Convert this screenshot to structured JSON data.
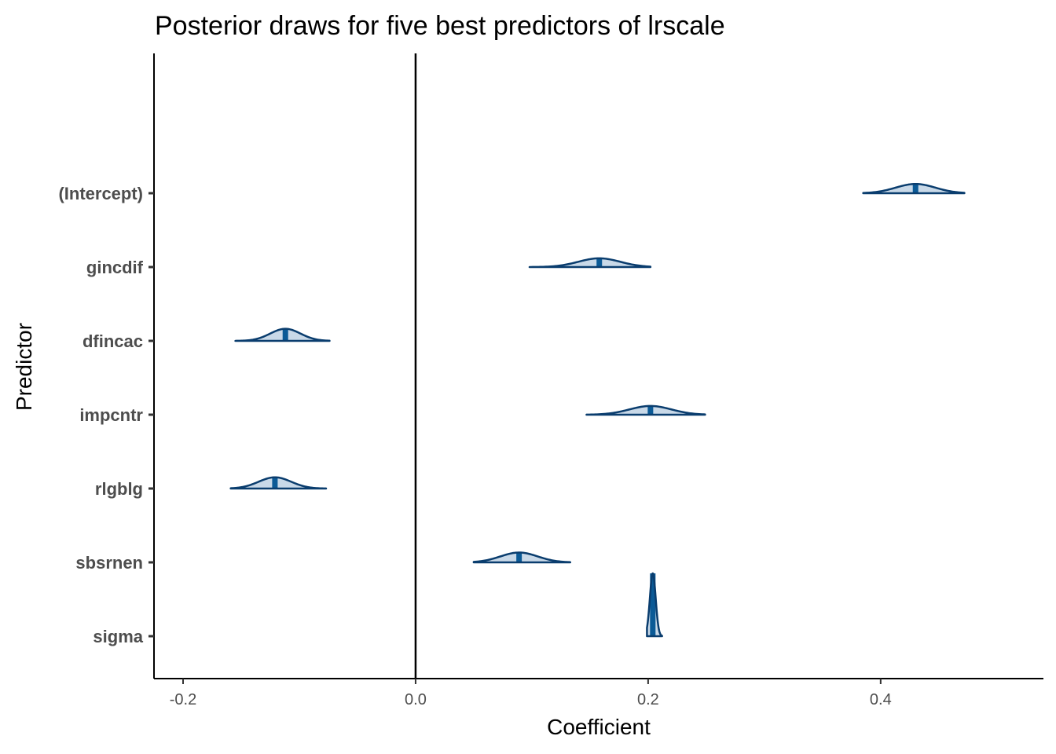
{
  "chart_data": {
    "type": "ridgeline",
    "title": "Posterior draws for five best predictors of lrscale",
    "xlabel": "Coefficient",
    "ylabel": "Predictor",
    "xlim": [
      -0.225,
      0.54
    ],
    "x_ticks": [
      -0.2,
      0.0,
      0.2,
      0.4
    ],
    "x_tick_labels": [
      "-0.2",
      "0.0",
      "0.2",
      "0.4"
    ],
    "reference_line_x": 0.0,
    "grid": false,
    "colors": {
      "outline": "#0a3d6e",
      "fill": "#c9d9e8",
      "median": "#0b5a96",
      "axis": "#000000",
      "tick_label": "#4d4d4d"
    },
    "series": [
      {
        "name": "(Intercept)",
        "median": 0.43,
        "sd": 0.017,
        "min": 0.385,
        "max": 0.472
      },
      {
        "name": "gincdif",
        "median": 0.158,
        "sd": 0.018,
        "min": 0.098,
        "max": 0.202
      },
      {
        "name": "dfincac",
        "median": -0.112,
        "sd": 0.013,
        "min": -0.155,
        "max": -0.074
      },
      {
        "name": "impcntr",
        "median": 0.202,
        "sd": 0.018,
        "min": 0.147,
        "max": 0.249
      },
      {
        "name": "rlgblg",
        "median": -0.121,
        "sd": 0.014,
        "min": -0.159,
        "max": -0.077
      },
      {
        "name": "sbsrnen",
        "median": 0.089,
        "sd": 0.016,
        "min": 0.05,
        "max": 0.133
      },
      {
        "name": "sigma",
        "median": 0.204,
        "sd": 0.0025,
        "min": 0.199,
        "max": 0.212
      }
    ]
  }
}
